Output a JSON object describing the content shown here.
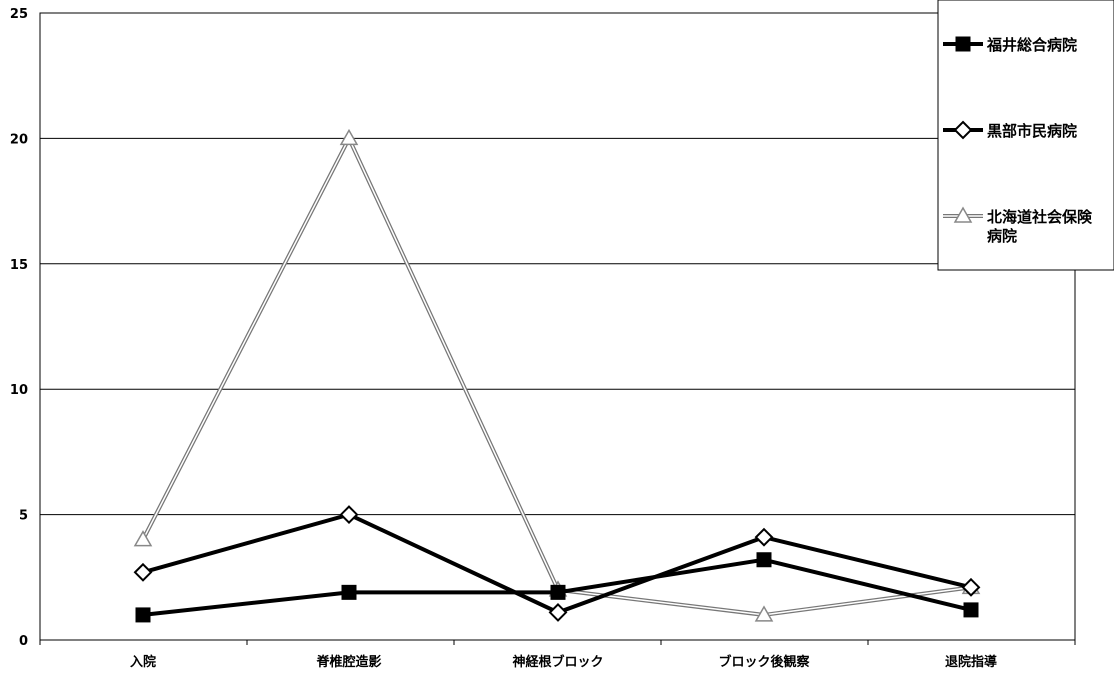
{
  "chart_data": {
    "type": "line",
    "title": "",
    "xlabel": "",
    "ylabel": "",
    "categories": [
      "入院",
      "脊椎腔造影",
      "神経根ブロック",
      "ブロック後観察",
      "退院指導"
    ],
    "ylim": [
      0,
      25
    ],
    "yticks": [
      0,
      5,
      10,
      15,
      20,
      25
    ],
    "grid": true,
    "legend_position": "right",
    "series": [
      {
        "name": "福井総合病院",
        "values": [
          1,
          1.9,
          1.9,
          3.2,
          1.2
        ],
        "color": "#000000",
        "marker": "filled-square"
      },
      {
        "name": "黒部市民病院",
        "values": [
          2.7,
          5,
          1.1,
          4.1,
          2.1
        ],
        "color": "#000000",
        "marker": "open-diamond"
      },
      {
        "name": "北海道社会保険病院",
        "name_lines": [
          "北海道社会保険",
          "病院"
        ],
        "values": [
          4,
          20,
          2,
          1,
          2.1
        ],
        "color": "#888888",
        "marker": "open-triangle"
      }
    ]
  }
}
